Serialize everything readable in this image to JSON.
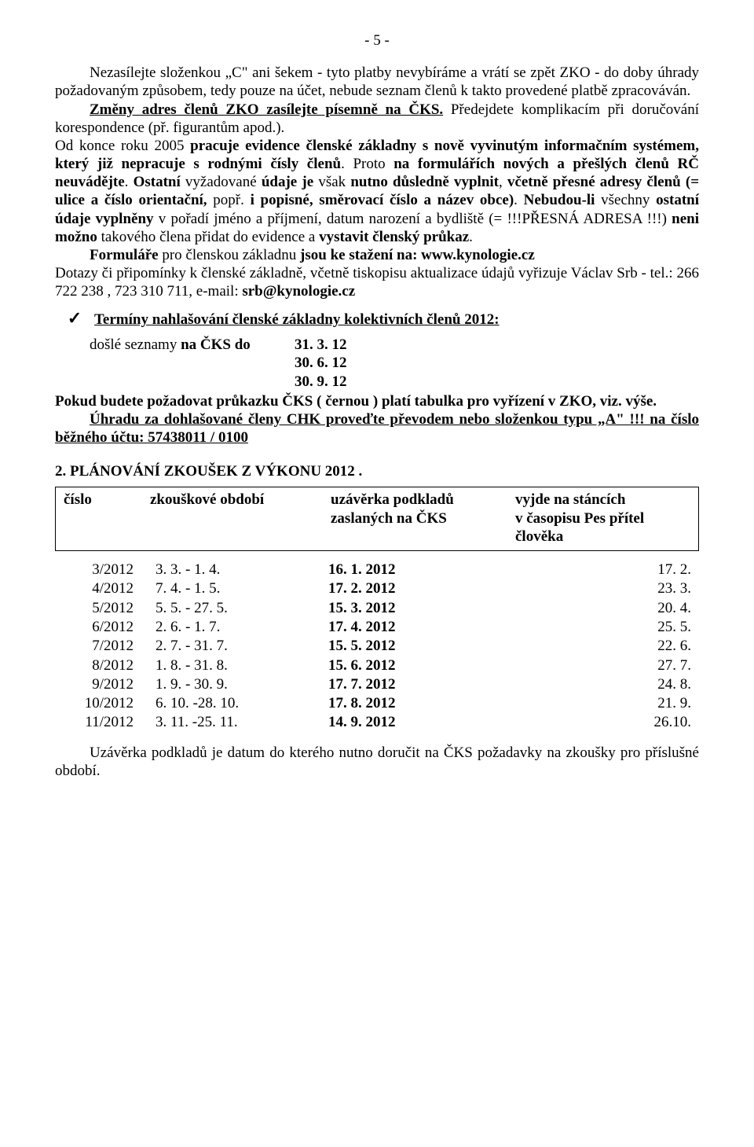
{
  "pageNumber": "- 5 -",
  "p1_a": "Nezasílejte složenkou „C\"  ani šekem - tyto platby nevybíráme a vrátí se zpět  ZKO - do doby úhrady požadovaným způsobem, tedy pouze na účet, nebude seznam členů k takto provedené platbě zpracováván.",
  "p2_a": "Změny  adres  členů  ZKO  zasílejte  písemně  na  ČKS.",
  "p2_b": "   Předejdete  komplikacím při doručování korespondence (př. figurantům apod.).",
  "p3_a": "Od konce roku 2005 ",
  "p3_b": "pracuje evidence členské základny s nově vyvinutým informačním systémem, který  již nepracuje s rodnými čísly členů",
  "p3_c": ". Proto  ",
  "p3_d": "na formulářích nových a přešlých členů RČ neuvádějte",
  "p3_e": ". ",
  "p3_f": "Ostatní",
  "p3_g": " vyžadované ",
  "p3_h": "údaje je",
  "p3_i": " však ",
  "p3_j": "nutno důsledně vyplnit",
  "p3_k": ", ",
  "p3_l": "včetně přesné adresy členů (= ulice a číslo orientační, ",
  "p3_m": "popř. ",
  "p3_n": "i popisné, směrovací číslo a název obce)",
  "p3_o": ". ",
  "p3_p": "Nebudou-li ",
  "p3_q": "všechny ",
  "p3_r": "ostatní údaje vyplněny",
  "p3_s": " v pořadí jméno a příjmení, datum narození a bydliště (= ",
  "p3_t": "!!!PŘESNÁ ADRESA !!!",
  "p3_u": ") ",
  "p3_v": "neni možno",
  "p3_w": " takového člena přidat do evidence a ",
  "p3_x": "vystavit členský průkaz",
  "p3_y": ".",
  "p4_a": "Formuláře",
  "p4_b": " pro členskou základnu ",
  "p4_c": "jsou ke stažení na: www.kynologie.cz",
  "p5_a": "Dotazy či připomínky k členské základně, včetně tiskopisu aktualizace údajů vyřizuje Václav Srb - tel.: 266 722 238 , 723 310 711, e-mail: ",
  "p5_b": "srb@kynologie.cz",
  "checkmark": "✓",
  "checkline": "Termíny nahlašování členské základny kolektivních členů 2012:",
  "dates_label": "došlé seznamy ",
  "dates_label_b": "na ČKS do",
  "d1": "31. 3. 12",
  "d2": "30. 6. 12",
  "d3": "30. 9. 12",
  "p6_a": "Pokud budete požadovat  průkazku  ČKS  ( černou ) platí tabulka  pro vyřízení v ZKO, viz. výše.",
  "p7_a": "Úhradu  za  dohlašované  členy  CHK  proveďte  převodem  nebo složenkou typu „A\" !!! na číslo běžného účtu: 57438011 / 0100",
  "sectionTitle": "2. PLÁNOVÁNÍ ZKOUŠEK Z VÝKONU 2012 .",
  "th1": "číslo",
  "th2": "zkouškové období",
  "th3": "uzávěrka podkladů",
  "th3b": "zaslaných na ČKS",
  "th4": "vyjde na stáncích",
  "th4b": "v časopisu Pes přítel člověka",
  "rows": [
    {
      "c1": "3/2012",
      "c2": "3. 3.  -  1. 4.",
      "c3": "16. 1. 2012",
      "c4": "17. 2."
    },
    {
      "c1": "4/2012",
      "c2": "7. 4.  -  1. 5.",
      "c3": "17. 2. 2012",
      "c4": "23. 3."
    },
    {
      "c1": "5/2012",
      "c2": "5. 5.  - 27. 5.",
      "c3": "15. 3. 2012",
      "c4": "20. 4."
    },
    {
      "c1": "6/2012",
      "c2": "2. 6.  -  1. 7.",
      "c3": "17. 4. 2012",
      "c4": "25. 5."
    },
    {
      "c1": "7/2012",
      "c2": "2. 7.  - 31. 7.",
      "c3": "15. 5. 2012",
      "c4": "22. 6."
    },
    {
      "c1": "8/2012",
      "c2": "1. 8.  - 31. 8.",
      "c3": "15. 6. 2012",
      "c4": "27. 7."
    },
    {
      "c1": "9/2012",
      "c2": "1. 9.  - 30. 9.",
      "c3": "17. 7. 2012",
      "c4": "24. 8."
    },
    {
      "c1": "10/2012",
      "c2": "6. 10. -28. 10.",
      "c3": "17. 8. 2012",
      "c4": "21. 9."
    },
    {
      "c1": "11/2012",
      "c2": "3. 11. -25. 11.",
      "c3": "14. 9. 2012",
      "c4": "26.10."
    }
  ],
  "p8": "Uzávěrka podkladů je datum do kterého nutno doručit na ČKS požadavky na zkoušky pro příslušné období."
}
